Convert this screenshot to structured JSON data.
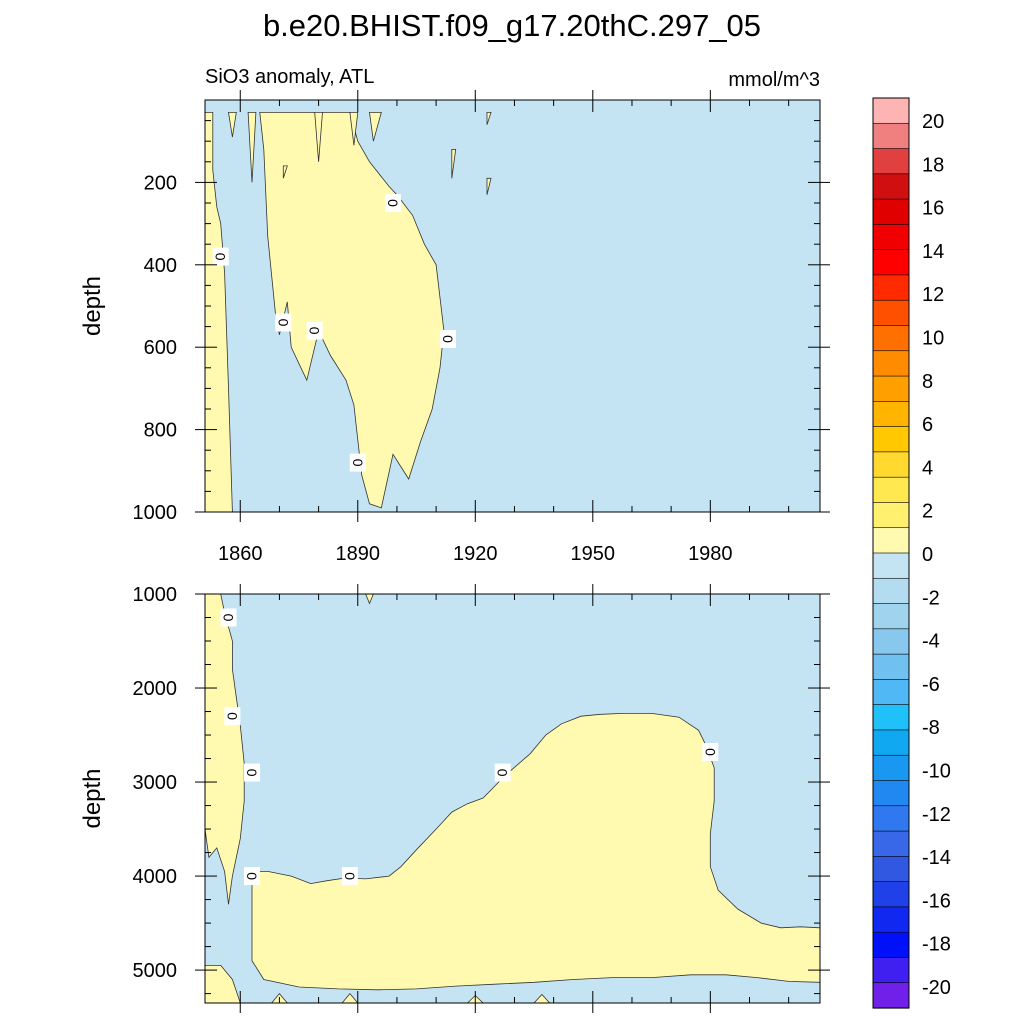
{
  "title": "b.e20.BHIST.f09_g17.20thC.297_05",
  "chart_data": [
    {
      "type": "heatmap",
      "panel": "upper",
      "left_label": "SiO3 anomaly, ATL",
      "right_label": "mmol/m^3",
      "ylabel": "depth",
      "xlabel": "",
      "xlim": [
        1851,
        2008
      ],
      "ylim": [
        1000,
        0
      ],
      "x_ticks": [
        1860,
        1890,
        1920,
        1950,
        1980
      ],
      "x_tick_labels": [
        "1860",
        "1890",
        "1920",
        "1950",
        "1980"
      ],
      "y_ticks": [
        200,
        400,
        600,
        800,
        1000
      ],
      "y_tick_labels": [
        "200",
        "400",
        "600",
        "800",
        "1000"
      ],
      "contour_label": "0",
      "contour_label_positions": [
        [
          1855,
          380
        ],
        [
          1871,
          540
        ],
        [
          1879,
          560
        ],
        [
          1899,
          250
        ],
        [
          1913,
          580
        ],
        [
          1890,
          880
        ]
      ],
      "positive_regions": [
        [
          [
            1851,
            1000
          ],
          [
            1851,
            30
          ],
          [
            1853,
            30
          ],
          [
            1853,
            170
          ],
          [
            1854,
            260
          ],
          [
            1855,
            300
          ],
          [
            1856,
            420
          ],
          [
            1857,
            700
          ],
          [
            1858,
            1000
          ]
        ],
        [
          [
            1865,
            30
          ],
          [
            1866,
            120
          ],
          [
            1867,
            330
          ],
          [
            1869,
            520
          ],
          [
            1870,
            570
          ],
          [
            1872,
            490
          ],
          [
            1873,
            600
          ],
          [
            1875,
            640
          ],
          [
            1877,
            680
          ],
          [
            1880,
            560
          ],
          [
            1883,
            620
          ],
          [
            1887,
            680
          ],
          [
            1889,
            740
          ],
          [
            1891,
            910
          ],
          [
            1893,
            980
          ],
          [
            1896,
            990
          ],
          [
            1899,
            860
          ],
          [
            1903,
            920
          ],
          [
            1906,
            830
          ],
          [
            1909,
            750
          ],
          [
            1911,
            650
          ],
          [
            1912,
            560
          ],
          [
            1910,
            400
          ],
          [
            1907,
            350
          ],
          [
            1904,
            280
          ],
          [
            1900,
            230
          ],
          [
            1898,
            210
          ],
          [
            1893,
            150
          ],
          [
            1890,
            100
          ],
          [
            1888,
            30
          ]
        ]
      ],
      "small_positive_patches": [
        [
          [
            1857,
            30
          ],
          [
            1859,
            30
          ],
          [
            1858,
            90
          ]
        ],
        [
          [
            1862,
            30
          ],
          [
            1864,
            30
          ],
          [
            1863,
            200
          ]
        ],
        [
          [
            1871,
            160
          ],
          [
            1872,
            160
          ],
          [
            1871,
            190
          ]
        ],
        [
          [
            1879,
            30
          ],
          [
            1881,
            30
          ],
          [
            1880,
            150
          ]
        ],
        [
          [
            1888,
            30
          ],
          [
            1890,
            30
          ],
          [
            1889,
            110
          ]
        ],
        [
          [
            1893,
            30
          ],
          [
            1896,
            30
          ],
          [
            1894,
            100
          ]
        ],
        [
          [
            1914,
            120
          ],
          [
            1915,
            120
          ],
          [
            1914,
            190
          ]
        ],
        [
          [
            1923,
            30
          ],
          [
            1924,
            30
          ],
          [
            1923,
            60
          ]
        ],
        [
          [
            1923,
            190
          ],
          [
            1924,
            190
          ],
          [
            1923,
            230
          ]
        ]
      ]
    },
    {
      "type": "heatmap",
      "panel": "lower",
      "ylabel": "depth",
      "xlabel": "",
      "xlim": [
        1851,
        2008
      ],
      "ylim": [
        5350,
        1000
      ],
      "x_ticks": [
        1860,
        1890,
        1920,
        1950,
        1980
      ],
      "y_ticks": [
        1000,
        2000,
        3000,
        4000,
        5000
      ],
      "y_tick_labels": [
        "1000",
        "2000",
        "3000",
        "4000",
        "5000"
      ],
      "contour_label": "0",
      "contour_label_positions": [
        [
          1857,
          1250
        ],
        [
          1858,
          2300
        ],
        [
          1863,
          2900
        ],
        [
          1863,
          4000
        ],
        [
          1888,
          4000
        ],
        [
          1927,
          2900
        ],
        [
          1980,
          2680
        ]
      ],
      "positive_regions": [
        [
          [
            1851,
            1000
          ],
          [
            1851,
            3500
          ],
          [
            1852,
            3800
          ],
          [
            1854,
            3700
          ],
          [
            1856,
            3950
          ],
          [
            1857,
            4300
          ],
          [
            1858,
            4000
          ],
          [
            1860,
            3600
          ],
          [
            1861,
            3200
          ],
          [
            1861,
            2800
          ],
          [
            1860,
            2400
          ],
          [
            1859,
            2100
          ],
          [
            1858,
            1800
          ],
          [
            1858,
            1500
          ],
          [
            1856,
            1200
          ],
          [
            1855,
            1000
          ]
        ],
        [
          [
            1863,
            4400
          ],
          [
            1863,
            3950
          ],
          [
            1867,
            3950
          ],
          [
            1873,
            4000
          ],
          [
            1878,
            4080
          ],
          [
            1882,
            4050
          ],
          [
            1887,
            4020
          ],
          [
            1892,
            4030
          ],
          [
            1898,
            4000
          ],
          [
            1901,
            3900
          ],
          [
            1905,
            3720
          ],
          [
            1910,
            3500
          ],
          [
            1914,
            3320
          ],
          [
            1918,
            3230
          ],
          [
            1922,
            3170
          ],
          [
            1926,
            3000
          ],
          [
            1929,
            2880
          ],
          [
            1934,
            2700
          ],
          [
            1938,
            2500
          ],
          [
            1942,
            2380
          ],
          [
            1947,
            2300
          ],
          [
            1952,
            2280
          ],
          [
            1958,
            2270
          ],
          [
            1965,
            2270
          ],
          [
            1972,
            2310
          ],
          [
            1977,
            2450
          ],
          [
            1979,
            2620
          ],
          [
            1981,
            2850
          ],
          [
            1981,
            3200
          ],
          [
            1980,
            3550
          ],
          [
            1980,
            3900
          ],
          [
            1982,
            4150
          ],
          [
            1987,
            4350
          ],
          [
            1993,
            4500
          ],
          [
            1998,
            4550
          ],
          [
            2003,
            4540
          ],
          [
            2008,
            4550
          ],
          [
            2008,
            5130
          ],
          [
            2000,
            5120
          ],
          [
            1992,
            5080
          ],
          [
            1984,
            5050
          ],
          [
            1975,
            5050
          ],
          [
            1965,
            5080
          ],
          [
            1955,
            5080
          ],
          [
            1945,
            5100
          ],
          [
            1935,
            5130
          ],
          [
            1925,
            5150
          ],
          [
            1915,
            5170
          ],
          [
            1905,
            5200
          ],
          [
            1895,
            5210
          ],
          [
            1885,
            5200
          ],
          [
            1875,
            5180
          ],
          [
            1866,
            5100
          ],
          [
            1863,
            4900
          ]
        ],
        [
          [
            1851,
            4950
          ],
          [
            1851,
            5350
          ],
          [
            1860,
            5350
          ],
          [
            1858,
            5100
          ],
          [
            1855,
            4950
          ]
        ],
        [
          [
            1868,
            5350
          ],
          [
            1870,
            5250
          ],
          [
            1872,
            5350
          ]
        ],
        [
          [
            1886,
            5350
          ],
          [
            1888,
            5250
          ],
          [
            1890,
            5350
          ]
        ],
        [
          [
            1918,
            5350
          ],
          [
            1920,
            5270
          ],
          [
            1922,
            5350
          ]
        ],
        [
          [
            1935,
            5350
          ],
          [
            1937,
            5260
          ],
          [
            1939,
            5350
          ]
        ],
        [
          [
            1892,
            1000
          ],
          [
            1894,
            1000
          ],
          [
            1893,
            1100
          ]
        ]
      ]
    }
  ],
  "colorbar": {
    "labels": [
      "20",
      "18",
      "16",
      "14",
      "12",
      "10",
      "8",
      "6",
      "4",
      "2",
      "0",
      "-2",
      "-4",
      "-6",
      "-8",
      "-10",
      "-12",
      "-14",
      "-16",
      "-18",
      "-20"
    ],
    "colors": [
      "#ffb4b4",
      "#f08080",
      "#e04040",
      "#d01010",
      "#e00000",
      "#f00000",
      "#ff0000",
      "#ff2a00",
      "#ff5000",
      "#ff7000",
      "#ff8c00",
      "#ffa000",
      "#ffb400",
      "#ffc800",
      "#ffd830",
      "#ffe850",
      "#fff070",
      "#fffab0",
      "#c4e4f4",
      "#b4dcf0",
      "#a0d4ee",
      "#88c8ee",
      "#70c0f0",
      "#50b8f4",
      "#20c0f8",
      "#10a8f0",
      "#1898f0",
      "#2088f0",
      "#3078f0",
      "#3868e8",
      "#3058e0",
      "#2040e8",
      "#1028f0",
      "#0010f8",
      "#4020f0",
      "#7020e8"
    ],
    "negative_fill": "#c4e4f4",
    "positive_fill": "#fffab0"
  }
}
